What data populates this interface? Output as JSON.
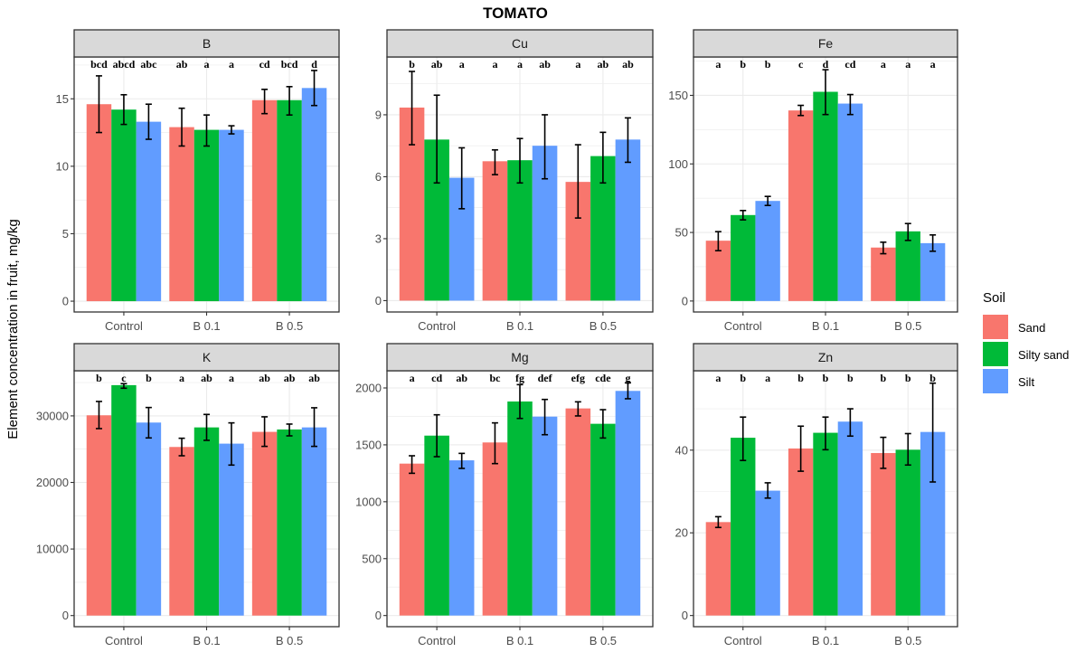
{
  "chart_data": {
    "type": "bar",
    "title": "TOMATO",
    "ylabel": "Element concentration in fruit, mg/kg",
    "xlabel": "",
    "categories": [
      "Control",
      "B 0.1",
      "B 0.5"
    ],
    "legend": {
      "title": "Soil",
      "position": "right",
      "entries": [
        {
          "name": "Sand",
          "color": "#F8766D"
        },
        {
          "name": "Silty sand",
          "color": "#00BA38"
        },
        {
          "name": "Silt",
          "color": "#619CFF"
        }
      ]
    },
    "grid": true,
    "panels": [
      {
        "name": "B",
        "ylim": [
          -0.8,
          18.1
        ],
        "yticks": [
          0,
          5,
          10,
          15
        ],
        "series": [
          {
            "name": "Sand",
            "values": [
              14.6,
              12.9,
              14.9
            ],
            "err_low": [
              12.5,
              11.5,
              13.9
            ],
            "err_high": [
              16.7,
              14.3,
              15.7
            ],
            "letters": [
              "bcd",
              "ab",
              "cd"
            ]
          },
          {
            "name": "Silty sand",
            "values": [
              14.2,
              12.7,
              14.9
            ],
            "err_low": [
              13.1,
              11.5,
              13.8
            ],
            "err_high": [
              15.3,
              13.8,
              15.9
            ],
            "letters": [
              "abcd",
              "a",
              "bcd"
            ]
          },
          {
            "name": "Silt",
            "values": [
              13.3,
              12.7,
              15.8
            ],
            "err_low": [
              12.0,
              12.4,
              14.5
            ],
            "err_high": [
              14.6,
              13.0,
              17.1
            ],
            "letters": [
              "abc",
              "a",
              "d"
            ]
          }
        ]
      },
      {
        "name": "Cu",
        "ylim": [
          -0.55,
          11.8
        ],
        "yticks": [
          0,
          3,
          6,
          9
        ],
        "series": [
          {
            "name": "Sand",
            "values": [
              9.35,
              6.75,
              5.75
            ],
            "err_low": [
              7.55,
              6.1,
              4.0
            ],
            "err_high": [
              11.1,
              7.3,
              7.55
            ],
            "letters": [
              "b",
              "a",
              "a"
            ]
          },
          {
            "name": "Silty sand",
            "values": [
              7.8,
              6.8,
              7.0
            ],
            "err_low": [
              5.7,
              5.7,
              5.7
            ],
            "err_high": [
              9.95,
              7.85,
              8.15
            ],
            "letters": [
              "ab",
              "a",
              "ab"
            ]
          },
          {
            "name": "Silt",
            "values": [
              5.95,
              7.5,
              7.8
            ],
            "err_low": [
              4.45,
              5.9,
              6.7
            ],
            "err_high": [
              7.4,
              9.0,
              8.85
            ],
            "letters": [
              "a",
              "ab",
              "ab"
            ]
          }
        ]
      },
      {
        "name": "Fe",
        "ylim": [
          -8,
          178
        ],
        "yticks": [
          0,
          50,
          100,
          150
        ],
        "series": [
          {
            "name": "Sand",
            "values": [
              44,
              139,
              39
            ],
            "err_low": [
              36.7,
              135.3,
              34.5
            ],
            "err_high": [
              50.6,
              142.7,
              42.9
            ],
            "letters": [
              "a",
              "c",
              "a"
            ]
          },
          {
            "name": "Silty sand",
            "values": [
              62.7,
              152.6,
              50.8
            ],
            "err_low": [
              59.2,
              136,
              44.2
            ],
            "err_high": [
              66,
              168.7,
              56.5
            ],
            "letters": [
              "b",
              "d",
              "a"
            ]
          },
          {
            "name": "Silt",
            "values": [
              73,
              144,
              42.2
            ],
            "err_low": [
              69.7,
              136,
              36.3
            ],
            "err_high": [
              76.3,
              150.6,
              48.2
            ],
            "letters": [
              "b",
              "cd",
              "a"
            ]
          }
        ]
      },
      {
        "name": "K",
        "ylim": [
          -1670,
          36780
        ],
        "yticks": [
          0,
          10000,
          20000,
          30000
        ],
        "series": [
          {
            "name": "Sand",
            "values": [
              30090,
              25330,
              27600
            ],
            "err_low": [
              28090,
              24010,
              25420
            ],
            "err_high": [
              32170,
              26640,
              29860
            ],
            "letters": [
              "b",
              "a",
              "ab"
            ]
          },
          {
            "name": "Silty sand",
            "values": [
              34620,
              28270,
              27960
            ],
            "err_low": [
              34160,
              26330,
              27000
            ],
            "err_high": [
              34840,
              30220,
              28770
            ],
            "letters": [
              "c",
              "ab",
              "ab"
            ]
          },
          {
            "name": "Silt",
            "values": [
              29000,
              25830,
              28270
            ],
            "err_low": [
              26690,
              22610,
              25420
            ],
            "err_high": [
              31260,
              28950,
              31220
            ],
            "letters": [
              "b",
              "a",
              "ab"
            ]
          }
        ]
      },
      {
        "name": "Mg",
        "ylim": [
          -98,
          2151
        ],
        "yticks": [
          0,
          500,
          1000,
          1500,
          2000
        ],
        "series": [
          {
            "name": "Sand",
            "values": [
              1335,
              1521,
              1820
            ],
            "err_low": [
              1250,
              1335,
              1754
            ],
            "err_high": [
              1404,
              1693,
              1878
            ],
            "letters": [
              "a",
              "bc",
              "efg"
            ]
          },
          {
            "name": "Silty sand",
            "values": [
              1581,
              1881,
              1685
            ],
            "err_low": [
              1396,
              1732,
              1560
            ],
            "err_high": [
              1764,
              2029,
              1809
            ],
            "letters": [
              "cd",
              "fg",
              "cde"
            ]
          },
          {
            "name": "Silt",
            "values": [
              1364,
              1748,
              1974
            ],
            "err_low": [
              1293,
              1589,
              1905
            ],
            "err_high": [
              1425,
              1899,
              2045
            ],
            "letters": [
              "ab",
              "def",
              "g"
            ]
          }
        ]
      },
      {
        "name": "Zn",
        "ylim": [
          -2.7,
          59.2
        ],
        "yticks": [
          0,
          20,
          40
        ],
        "series": [
          {
            "name": "Sand",
            "values": [
              22.6,
              40.4,
              39.3
            ],
            "err_low": [
              21.3,
              34.9,
              35.6
            ],
            "err_high": [
              23.9,
              45.8,
              43.1
            ],
            "letters": [
              "a",
              "b",
              "b"
            ]
          },
          {
            "name": "Silty sand",
            "values": [
              43,
              44.2,
              40.1
            ],
            "err_low": [
              37.5,
              40.1,
              36.4
            ],
            "err_high": [
              48,
              48,
              44
            ],
            "letters": [
              "b",
              "b",
              "b"
            ]
          },
          {
            "name": "Silt",
            "values": [
              30.2,
              46.9,
              44.4
            ],
            "err_low": [
              28.4,
              43.4,
              32.3
            ],
            "err_high": [
              32.1,
              50,
              56.2
            ],
            "letters": [
              "a",
              "b",
              "b"
            ]
          }
        ]
      }
    ]
  }
}
